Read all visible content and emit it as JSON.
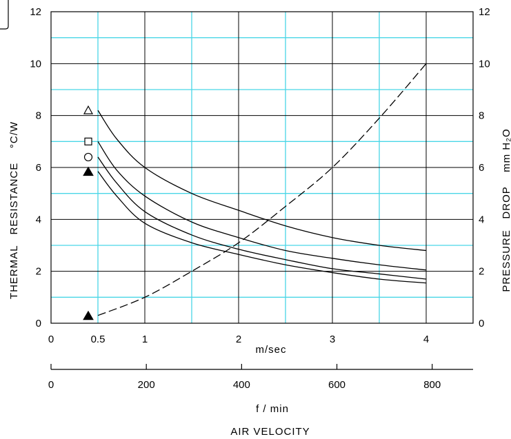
{
  "chart_data": {
    "type": "line",
    "left_axis": {
      "label": "THERMAL   RESISTANCE    °C/W",
      "range": [
        0,
        12
      ],
      "ticks": [
        "0",
        "2",
        "4",
        "6",
        "8",
        "10",
        "12"
      ]
    },
    "right_axis": {
      "label": "PRESSURE   DROP    mm H₂O",
      "range": [
        0,
        12
      ],
      "ticks": [
        "0",
        "2",
        "4",
        "6",
        "8",
        "10",
        "12"
      ]
    },
    "x_axis_ms": {
      "label": "m/sec",
      "range": [
        0,
        4.5
      ],
      "ticks": [
        {
          "value": 0,
          "text": "0"
        },
        {
          "value": 0.5,
          "text": "0.5"
        },
        {
          "value": 1,
          "text": "1"
        },
        {
          "value": 2,
          "text": "2"
        },
        {
          "value": 3,
          "text": "3"
        },
        {
          "value": 4,
          "text": "4"
        }
      ]
    },
    "x_axis_fpm": {
      "label": "f / min",
      "ticks": [
        "0",
        "200",
        "400",
        "600",
        "800"
      ],
      "tick_values": [
        0,
        200,
        400,
        600,
        800
      ]
    },
    "title_bottom": "AIR VELOCITY",
    "grid": true,
    "series": [
      {
        "marker": "open-triangle",
        "style": "solid",
        "axis": "left",
        "x": [
          0.5,
          0.7,
          1.0,
          1.5,
          2.0,
          2.5,
          3.0,
          3.5,
          4.0
        ],
        "y": [
          8.2,
          7.1,
          6.0,
          5.0,
          4.35,
          3.75,
          3.3,
          3.0,
          2.8
        ]
      },
      {
        "marker": "open-square",
        "style": "solid",
        "axis": "left",
        "x": [
          0.5,
          0.7,
          1.0,
          1.5,
          2.0,
          2.5,
          3.0,
          3.5,
          4.0
        ],
        "y": [
          7.0,
          5.9,
          4.9,
          3.9,
          3.3,
          2.8,
          2.5,
          2.25,
          2.05
        ]
      },
      {
        "marker": "open-circle",
        "style": "solid",
        "axis": "left",
        "x": [
          0.5,
          0.7,
          1.0,
          1.5,
          2.0,
          2.5,
          3.0,
          3.5,
          4.0
        ],
        "y": [
          6.4,
          5.4,
          4.3,
          3.4,
          2.85,
          2.45,
          2.1,
          1.9,
          1.7
        ]
      },
      {
        "marker": "filled-triangle",
        "style": "solid",
        "axis": "left",
        "x": [
          0.5,
          0.7,
          1.0,
          1.5,
          2.0,
          2.5,
          3.0,
          3.5,
          4.0
        ],
        "y": [
          5.85,
          4.9,
          3.85,
          3.1,
          2.65,
          2.25,
          1.95,
          1.7,
          1.55
        ]
      },
      {
        "marker": "filled-triangle",
        "style": "dashed",
        "axis": "right",
        "x": [
          0.5,
          1.0,
          1.5,
          2.0,
          2.5,
          3.0,
          3.5,
          4.0
        ],
        "y": [
          0.3,
          1.0,
          2.0,
          3.1,
          4.5,
          6.0,
          7.9,
          10.0
        ]
      }
    ],
    "colors": {
      "grid_major": "#000000",
      "grid_minor": "#49d6e6",
      "line": "#000000"
    }
  }
}
